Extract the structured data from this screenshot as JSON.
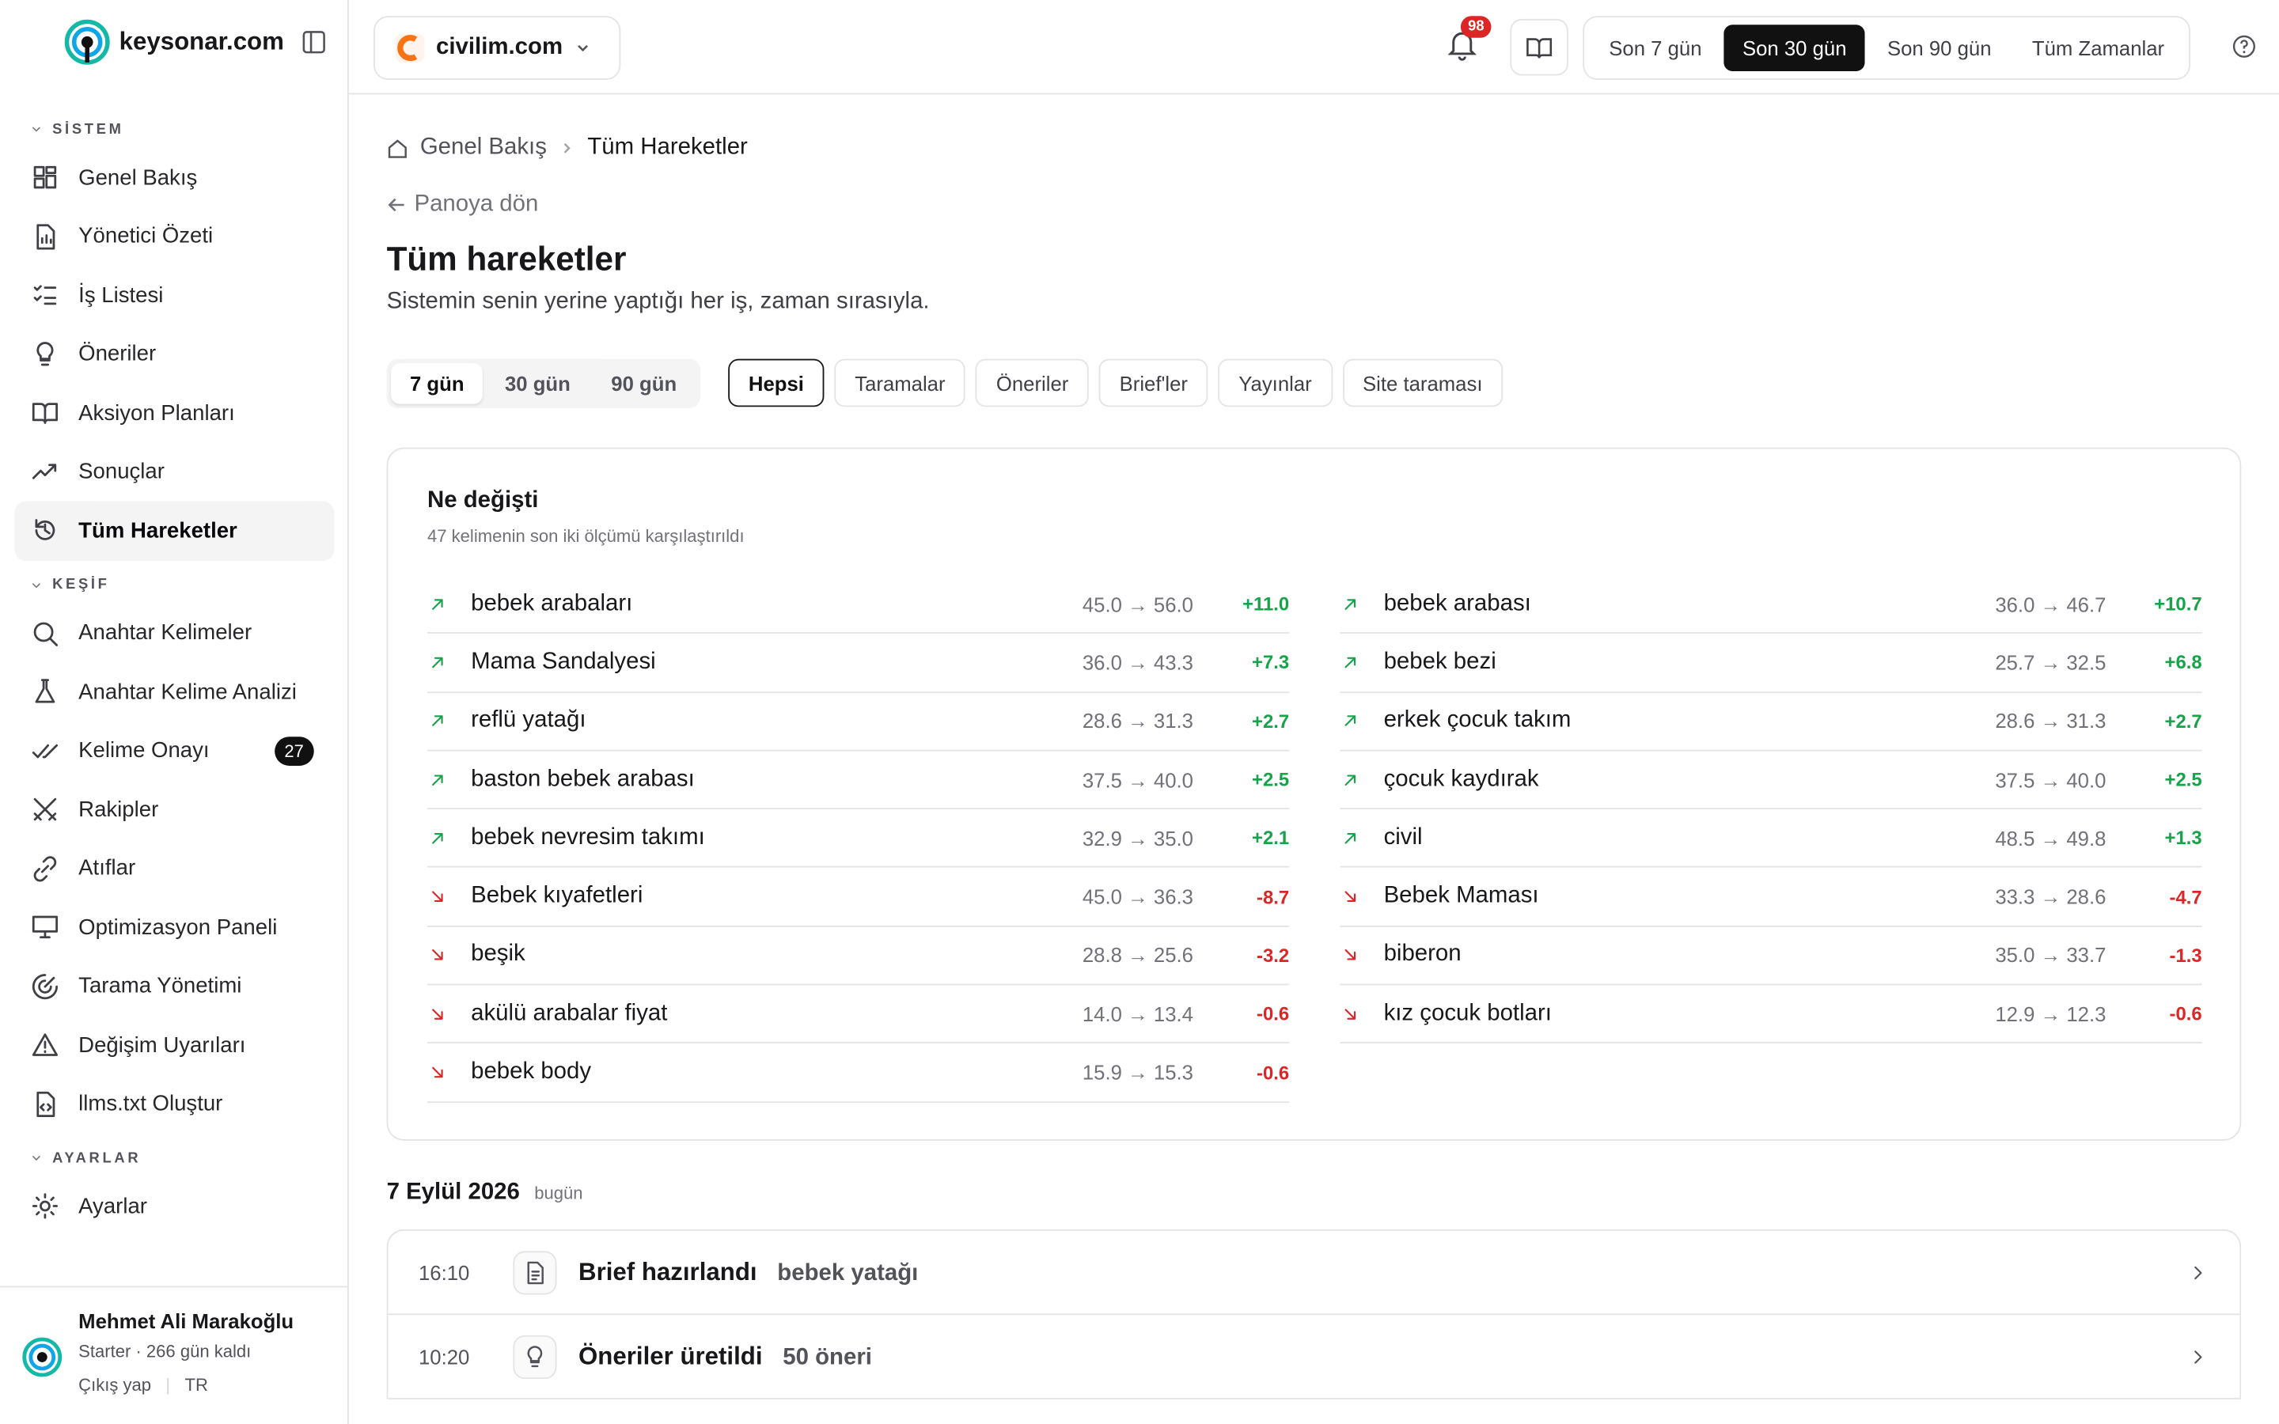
{
  "sidebar": {
    "logo": "keysonar.com",
    "sections": [
      {
        "title": "SİSTEM",
        "items": [
          {
            "label": "Genel Bakış"
          },
          {
            "label": "Yönetici Özeti"
          },
          {
            "label": "İş Listesi"
          },
          {
            "label": "Öneriler"
          },
          {
            "label": "Aksiyon Planları"
          },
          {
            "label": "Sonuçlar"
          },
          {
            "label": "Tüm Hareketler",
            "active": true
          }
        ]
      },
      {
        "title": "KEŞİF",
        "items": [
          {
            "label": "Anahtar Kelimeler"
          },
          {
            "label": "Anahtar Kelime Analizi"
          },
          {
            "label": "Kelime Onayı",
            "badge": "27"
          },
          {
            "label": "Rakipler"
          },
          {
            "label": "Atıflar"
          },
          {
            "label": "Optimizasyon Paneli"
          },
          {
            "label": "Tarama Yönetimi"
          },
          {
            "label": "Değişim Uyarıları"
          },
          {
            "label": "llms.txt Oluştur"
          }
        ]
      },
      {
        "title": "AYARLAR",
        "items": [
          {
            "label": "Ayarlar"
          }
        ]
      }
    ],
    "user": {
      "name": "Mehmet Ali Marakoğlu",
      "plan": "Starter · 266 gün kaldı",
      "logout": "Çıkış yap",
      "lang": "TR"
    }
  },
  "topbar": {
    "site": "civilim.com",
    "notifications": "98",
    "periods": [
      {
        "label": "Son 7 gün"
      },
      {
        "label": "Son 30 gün",
        "active": true
      },
      {
        "label": "Son 90 gün"
      },
      {
        "label": "Tüm Zamanlar"
      }
    ]
  },
  "breadcrumb": [
    "Genel Bakış",
    "Tüm Hareketler"
  ],
  "back": "Panoya dön",
  "title": "Tüm hareketler",
  "subtitle": "Sistemin senin yerine yaptığı her iş, zaman sırasıyla.",
  "range_tabs": [
    {
      "label": "7 gün",
      "active": true
    },
    {
      "label": "30 gün"
    },
    {
      "label": "90 gün"
    }
  ],
  "filters": [
    {
      "label": "Hepsi",
      "active": true
    },
    {
      "label": "Taramalar"
    },
    {
      "label": "Öneriler"
    },
    {
      "label": "Brief'ler"
    },
    {
      "label": "Yayınlar"
    },
    {
      "label": "Site taraması"
    }
  ],
  "changes": {
    "title": "Ne değişti",
    "subtitle": "47 kelimenin son iki ölçümü karşılaştırıldı",
    "columns": [
      [
        {
          "keyword": "bebek arabaları",
          "scores": "45.0 → 56.0",
          "delta": "+11.0"
        },
        {
          "keyword": "Mama Sandalyesi",
          "scores": "36.0 → 43.3",
          "delta": "+7.3"
        },
        {
          "keyword": "reflü yatağı",
          "scores": "28.6 → 31.3",
          "delta": "+2.7"
        },
        {
          "keyword": "baston bebek arabası",
          "scores": "37.5 → 40.0",
          "delta": "+2.5"
        },
        {
          "keyword": "bebek nevresim takımı",
          "scores": "32.9 → 35.0",
          "delta": "+2.1"
        },
        {
          "keyword": "Bebek kıyafetleri",
          "scores": "45.0 → 36.3",
          "delta": "-8.7"
        },
        {
          "keyword": "beşik",
          "scores": "28.8 → 25.6",
          "delta": "-3.2"
        },
        {
          "keyword": "akülü arabalar fiyat",
          "scores": "14.0 → 13.4",
          "delta": "-0.6"
        },
        {
          "keyword": "bebek body",
          "scores": "15.9 → 15.3",
          "delta": "-0.6"
        }
      ],
      [
        {
          "keyword": "bebek arabası",
          "scores": "36.0 → 46.7",
          "delta": "+10.7"
        },
        {
          "keyword": "bebek bezi",
          "scores": "25.7 → 32.5",
          "delta": "+6.8"
        },
        {
          "keyword": "erkek çocuk takım",
          "scores": "28.6 → 31.3",
          "delta": "+2.7"
        },
        {
          "keyword": "çocuk kaydırak",
          "scores": "37.5 → 40.0",
          "delta": "+2.5"
        },
        {
          "keyword": "civil",
          "scores": "48.5 → 49.8",
          "delta": "+1.3"
        },
        {
          "keyword": "Bebek Maması",
          "scores": "33.3 → 28.6",
          "delta": "-4.7"
        },
        {
          "keyword": "biberon",
          "scores": "35.0 → 33.7",
          "delta": "-1.3"
        },
        {
          "keyword": "kız çocuk botları",
          "scores": "12.9 → 12.3",
          "delta": "-0.6"
        }
      ]
    ]
  },
  "day": {
    "date": "7 Eylül 2026",
    "note": "bugün",
    "events": [
      {
        "time": "16:10",
        "title": "Brief hazırlandı",
        "detail": "bebek yatağı"
      },
      {
        "time": "10:20",
        "title": "Öneriler üretildi",
        "detail": "50 öneri"
      }
    ]
  }
}
